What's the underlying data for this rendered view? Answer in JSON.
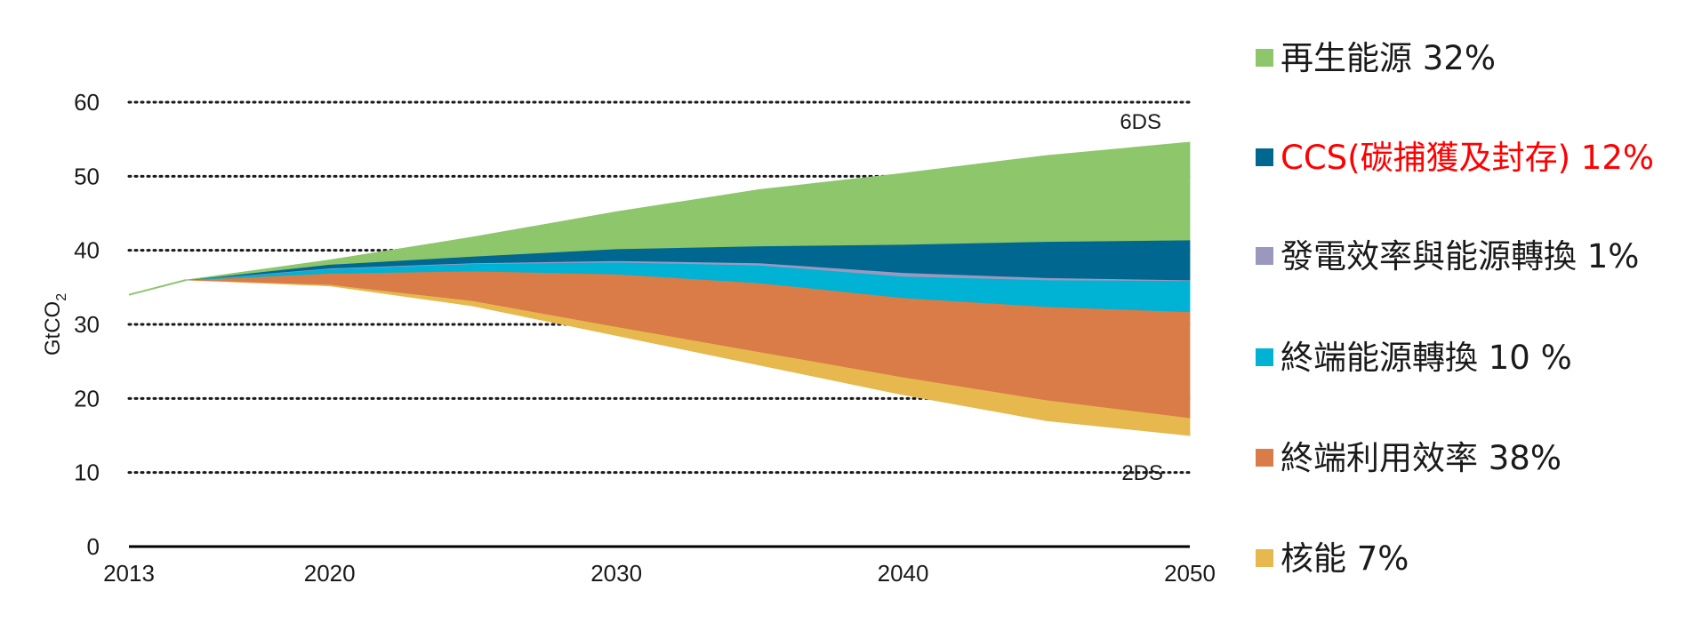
{
  "chart_data": {
    "type": "area",
    "xlabel": "",
    "ylabel": "GtCO",
    "ylabel_sub": "2",
    "xlim": [
      2013,
      2050
    ],
    "ylim": [
      0,
      60
    ],
    "x_ticks": [
      "2013",
      "2020",
      "2030",
      "2040",
      "2050"
    ],
    "y_ticks": [
      "0",
      "10",
      "20",
      "30",
      "40",
      "50",
      "60"
    ],
    "grid": "horizontal dotted",
    "annotations": {
      "top": "6DS",
      "bottom": "2DS"
    },
    "baseline": {
      "x": [
        2013,
        2015
      ],
      "y": [
        34,
        36
      ]
    },
    "x": [
      2015,
      2020,
      2025,
      2030,
      2035,
      2040,
      2045,
      2050
    ],
    "bounds": [
      [
        36,
        35.2,
        32.5,
        28.5,
        24.5,
        20.5,
        17.0,
        15.0
      ],
      [
        36,
        35.4,
        33.2,
        29.7,
        26.3,
        22.9,
        19.8,
        17.4
      ],
      [
        36,
        36.9,
        37.2,
        36.8,
        35.6,
        33.6,
        32.4,
        31.7
      ],
      [
        36,
        37.5,
        38.2,
        38.4,
        38.0,
        36.5,
        36.0,
        35.9
      ],
      [
        36,
        37.6,
        38.3,
        38.6,
        38.3,
        37.0,
        36.3,
        36.0
      ],
      [
        36,
        38.1,
        39.2,
        40.2,
        40.6,
        40.8,
        41.2,
        41.4
      ],
      [
        36,
        38.7,
        41.8,
        45.2,
        48.2,
        50.4,
        52.8,
        54.6
      ]
    ],
    "series": [
      {
        "name": "核能 7%",
        "color": "#E6B84E"
      },
      {
        "name": "終端利用效率 38%",
        "color": "#D97C48"
      },
      {
        "name": "終端能源轉換 10 %",
        "color": "#00B2D3"
      },
      {
        "name": "發電效率與能源轉換 1%",
        "color": "#9B98C0"
      },
      {
        "name": "CCS(碳捕獲及封存) 12%",
        "color": "#006890"
      },
      {
        "name": "再生能源  32%",
        "color": "#8DC66B"
      }
    ]
  },
  "legend": [
    {
      "label": "再生能源  32%",
      "swatch": "#8DC66B",
      "text_color": "#1a1a1a"
    },
    {
      "label": "CCS(碳捕獲及封存) 12%",
      "swatch": "#006890",
      "text_color": "#FF0000"
    },
    {
      "label": "發電效率與能源轉換 1%",
      "swatch": "#9B98C0",
      "text_color": "#1a1a1a"
    },
    {
      "label": "終端能源轉換 10 %",
      "swatch": "#00B2D3",
      "text_color": "#1a1a1a"
    },
    {
      "label": "終端利用效率 38%",
      "swatch": "#D97C48",
      "text_color": "#1a1a1a"
    },
    {
      "label": "核能 7%",
      "swatch": "#E6B84E",
      "text_color": "#1a1a1a"
    }
  ]
}
